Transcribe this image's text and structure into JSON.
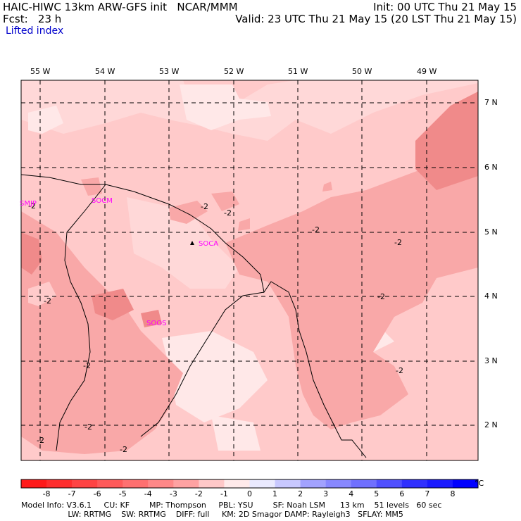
{
  "header": {
    "line1_left": "HAIC-HIWC 13km ARW-GFS init   NCAR/MMM",
    "line2_left": "Fcst:   23 h",
    "line1_right": "Init: 00 UTC Thu 21 May 15",
    "line2_right": "Valid: 23 UTC Thu 21 May 15 (20 LST Thu 21 May 15)",
    "field_name": "Lifted index"
  },
  "map": {
    "longitude_labels": [
      "55 W",
      "54 W",
      "53 W",
      "52 W",
      "51 W",
      "50 W",
      "49 W"
    ],
    "latitude_labels": [
      "7 N",
      "6 N",
      "5 N",
      "4 N",
      "3 N",
      "2 N"
    ],
    "stations": [
      "SMJP",
      "SOCM",
      "SOCA",
      "SOOS"
    ],
    "contour_labels": [
      "-2",
      "-2",
      "-2",
      "-2",
      "-2",
      "-2",
      "-2",
      "-2",
      "-2",
      "-2",
      "-2",
      "-2"
    ],
    "colors": {
      "lightest": "#ffe8e8",
      "light": "#ffcaca",
      "medium": "#f9a8a8",
      "dark": "#f08a8a",
      "station": "#ff00ff",
      "grid": "#000000"
    }
  },
  "colorbar": {
    "unit": "°C",
    "labels": [
      "-8",
      "-7",
      "-6",
      "-5",
      "-4",
      "-3",
      "-2",
      "-1",
      "0",
      "1",
      "2",
      "3",
      "4",
      "5",
      "6",
      "7",
      "8"
    ],
    "colors": [
      "#ff1a1a",
      "#ff2e2e",
      "#ff4444",
      "#ff5a5a",
      "#ff7070",
      "#ff8888",
      "#ffa2a2",
      "#ffc8c8",
      "#ffeaea",
      "#eaeaff",
      "#c8c8ff",
      "#a2a2ff",
      "#8888ff",
      "#7070ff",
      "#5050ff",
      "#3030ff",
      "#1a1aff",
      "#0000ff"
    ]
  },
  "footer": {
    "line1": "Model Info: V3.6.1     CU: KF        MP: Thompson     PBL: YSU        SF: Noah LSM      13 km    51 levels   60 sec",
    "line2": "                   LW: RRTMG    SW: RRTMG    DIFF: full     KM: 2D Smagor DAMP: Rayleigh3   SFLAY: MM5"
  }
}
